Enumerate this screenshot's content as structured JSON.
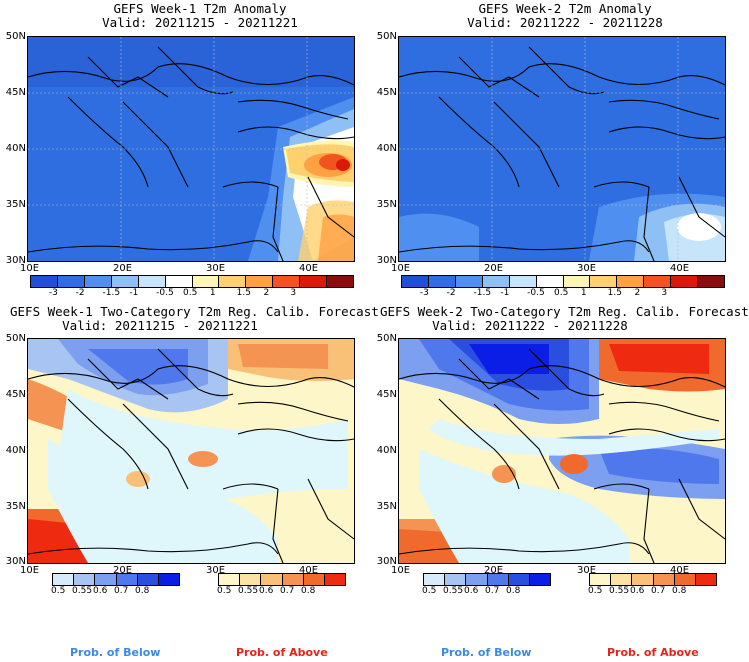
{
  "panels": [
    {
      "title": "GEFS Week-1 T2m Anomaly",
      "valid": "Valid: 20211215 - 20211221"
    },
    {
      "title": "GEFS Week-2 T2m Anomaly",
      "valid": "Valid: 20211222 - 20211228"
    },
    {
      "title": "GEFS Week-1 Two-Category T2m Reg. Calib. Forecast",
      "valid": "Valid: 20211215 - 20211221"
    },
    {
      "title": "GEFS Week-2 Two-Category T2m Reg. Calib. Forecast",
      "valid": "Valid: 20211222 - 20211228"
    }
  ],
  "axes": {
    "lat_labels": [
      "50N",
      "45N",
      "40N",
      "35N",
      "30N"
    ],
    "lon_labels": [
      "10E",
      "20E",
      "30E",
      "40E"
    ]
  },
  "anomaly_colorbar": {
    "labels": [
      "-3",
      "-2",
      "-1.5",
      "-1",
      "-0.5",
      "0.5",
      "1",
      "1.5",
      "2",
      "3"
    ],
    "colors": [
      "#1f4fd2",
      "#2f6ee0",
      "#4f8ff0",
      "#8ec0f5",
      "#c6e4fa",
      "#ffffff",
      "#fff5b5",
      "#ffd16e",
      "#ffa043",
      "#f2541f",
      "#d91a0b",
      "#8a0d0d"
    ]
  },
  "prob_below": {
    "labels": [
      "0.5",
      "0.55",
      "0.6",
      "0.7",
      "0.8"
    ],
    "colors": [
      "#d6ecfb",
      "#a8c4f2",
      "#7c9ff0",
      "#4f78ec",
      "#2a4fe0",
      "#0a1ee5"
    ],
    "caption": "Prob. of Below",
    "caption_color": "#3a8ae6"
  },
  "prob_above": {
    "labels": [
      "0.5",
      "0.55",
      "0.6",
      "0.7",
      "0.8"
    ],
    "colors": [
      "#fdf6c8",
      "#fde3a3",
      "#f9c078",
      "#f59452",
      "#f06a2e",
      "#ee2a10"
    ],
    "caption": "Prob. of Above",
    "caption_color": "#e8231b"
  },
  "map_colors": {
    "ocean_light": "#dff6fa",
    "land_anom_cold": "#2f6ee0",
    "warm_core": "#e83b16"
  }
}
